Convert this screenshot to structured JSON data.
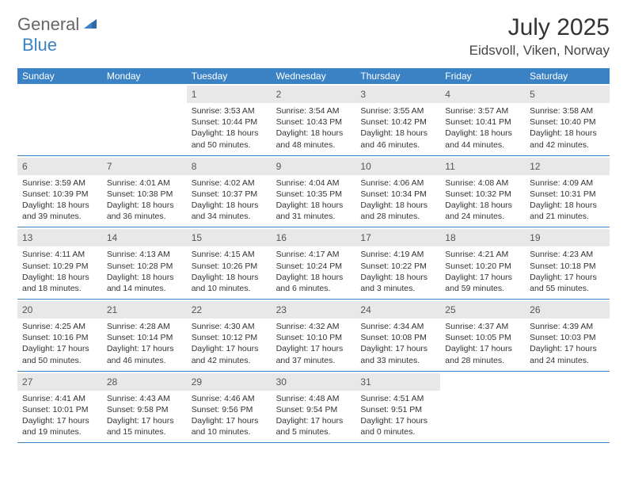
{
  "brand": {
    "general": "General",
    "blue": "Blue"
  },
  "title": "July 2025",
  "location": "Eidsvoll, Viken, Norway",
  "day_headers": [
    "Sunday",
    "Monday",
    "Tuesday",
    "Wednesday",
    "Thursday",
    "Friday",
    "Saturday"
  ],
  "colors": {
    "accent": "#3b82c4",
    "daynum_bg": "#e8e8e8",
    "text": "#333333",
    "bg": "#ffffff"
  },
  "weeks": [
    [
      {
        "empty": true
      },
      {
        "empty": true
      },
      {
        "day": "1",
        "sunrise": "Sunrise: 3:53 AM",
        "sunset": "Sunset: 10:44 PM",
        "daylight": "Daylight: 18 hours and 50 minutes."
      },
      {
        "day": "2",
        "sunrise": "Sunrise: 3:54 AM",
        "sunset": "Sunset: 10:43 PM",
        "daylight": "Daylight: 18 hours and 48 minutes."
      },
      {
        "day": "3",
        "sunrise": "Sunrise: 3:55 AM",
        "sunset": "Sunset: 10:42 PM",
        "daylight": "Daylight: 18 hours and 46 minutes."
      },
      {
        "day": "4",
        "sunrise": "Sunrise: 3:57 AM",
        "sunset": "Sunset: 10:41 PM",
        "daylight": "Daylight: 18 hours and 44 minutes."
      },
      {
        "day": "5",
        "sunrise": "Sunrise: 3:58 AM",
        "sunset": "Sunset: 10:40 PM",
        "daylight": "Daylight: 18 hours and 42 minutes."
      }
    ],
    [
      {
        "day": "6",
        "sunrise": "Sunrise: 3:59 AM",
        "sunset": "Sunset: 10:39 PM",
        "daylight": "Daylight: 18 hours and 39 minutes."
      },
      {
        "day": "7",
        "sunrise": "Sunrise: 4:01 AM",
        "sunset": "Sunset: 10:38 PM",
        "daylight": "Daylight: 18 hours and 36 minutes."
      },
      {
        "day": "8",
        "sunrise": "Sunrise: 4:02 AM",
        "sunset": "Sunset: 10:37 PM",
        "daylight": "Daylight: 18 hours and 34 minutes."
      },
      {
        "day": "9",
        "sunrise": "Sunrise: 4:04 AM",
        "sunset": "Sunset: 10:35 PM",
        "daylight": "Daylight: 18 hours and 31 minutes."
      },
      {
        "day": "10",
        "sunrise": "Sunrise: 4:06 AM",
        "sunset": "Sunset: 10:34 PM",
        "daylight": "Daylight: 18 hours and 28 minutes."
      },
      {
        "day": "11",
        "sunrise": "Sunrise: 4:08 AM",
        "sunset": "Sunset: 10:32 PM",
        "daylight": "Daylight: 18 hours and 24 minutes."
      },
      {
        "day": "12",
        "sunrise": "Sunrise: 4:09 AM",
        "sunset": "Sunset: 10:31 PM",
        "daylight": "Daylight: 18 hours and 21 minutes."
      }
    ],
    [
      {
        "day": "13",
        "sunrise": "Sunrise: 4:11 AM",
        "sunset": "Sunset: 10:29 PM",
        "daylight": "Daylight: 18 hours and 18 minutes."
      },
      {
        "day": "14",
        "sunrise": "Sunrise: 4:13 AM",
        "sunset": "Sunset: 10:28 PM",
        "daylight": "Daylight: 18 hours and 14 minutes."
      },
      {
        "day": "15",
        "sunrise": "Sunrise: 4:15 AM",
        "sunset": "Sunset: 10:26 PM",
        "daylight": "Daylight: 18 hours and 10 minutes."
      },
      {
        "day": "16",
        "sunrise": "Sunrise: 4:17 AM",
        "sunset": "Sunset: 10:24 PM",
        "daylight": "Daylight: 18 hours and 6 minutes."
      },
      {
        "day": "17",
        "sunrise": "Sunrise: 4:19 AM",
        "sunset": "Sunset: 10:22 PM",
        "daylight": "Daylight: 18 hours and 3 minutes."
      },
      {
        "day": "18",
        "sunrise": "Sunrise: 4:21 AM",
        "sunset": "Sunset: 10:20 PM",
        "daylight": "Daylight: 17 hours and 59 minutes."
      },
      {
        "day": "19",
        "sunrise": "Sunrise: 4:23 AM",
        "sunset": "Sunset: 10:18 PM",
        "daylight": "Daylight: 17 hours and 55 minutes."
      }
    ],
    [
      {
        "day": "20",
        "sunrise": "Sunrise: 4:25 AM",
        "sunset": "Sunset: 10:16 PM",
        "daylight": "Daylight: 17 hours and 50 minutes."
      },
      {
        "day": "21",
        "sunrise": "Sunrise: 4:28 AM",
        "sunset": "Sunset: 10:14 PM",
        "daylight": "Daylight: 17 hours and 46 minutes."
      },
      {
        "day": "22",
        "sunrise": "Sunrise: 4:30 AM",
        "sunset": "Sunset: 10:12 PM",
        "daylight": "Daylight: 17 hours and 42 minutes."
      },
      {
        "day": "23",
        "sunrise": "Sunrise: 4:32 AM",
        "sunset": "Sunset: 10:10 PM",
        "daylight": "Daylight: 17 hours and 37 minutes."
      },
      {
        "day": "24",
        "sunrise": "Sunrise: 4:34 AM",
        "sunset": "Sunset: 10:08 PM",
        "daylight": "Daylight: 17 hours and 33 minutes."
      },
      {
        "day": "25",
        "sunrise": "Sunrise: 4:37 AM",
        "sunset": "Sunset: 10:05 PM",
        "daylight": "Daylight: 17 hours and 28 minutes."
      },
      {
        "day": "26",
        "sunrise": "Sunrise: 4:39 AM",
        "sunset": "Sunset: 10:03 PM",
        "daylight": "Daylight: 17 hours and 24 minutes."
      }
    ],
    [
      {
        "day": "27",
        "sunrise": "Sunrise: 4:41 AM",
        "sunset": "Sunset: 10:01 PM",
        "daylight": "Daylight: 17 hours and 19 minutes."
      },
      {
        "day": "28",
        "sunrise": "Sunrise: 4:43 AM",
        "sunset": "Sunset: 9:58 PM",
        "daylight": "Daylight: 17 hours and 15 minutes."
      },
      {
        "day": "29",
        "sunrise": "Sunrise: 4:46 AM",
        "sunset": "Sunset: 9:56 PM",
        "daylight": "Daylight: 17 hours and 10 minutes."
      },
      {
        "day": "30",
        "sunrise": "Sunrise: 4:48 AM",
        "sunset": "Sunset: 9:54 PM",
        "daylight": "Daylight: 17 hours and 5 minutes."
      },
      {
        "day": "31",
        "sunrise": "Sunrise: 4:51 AM",
        "sunset": "Sunset: 9:51 PM",
        "daylight": "Daylight: 17 hours and 0 minutes."
      },
      {
        "empty": true
      },
      {
        "empty": true
      }
    ]
  ]
}
